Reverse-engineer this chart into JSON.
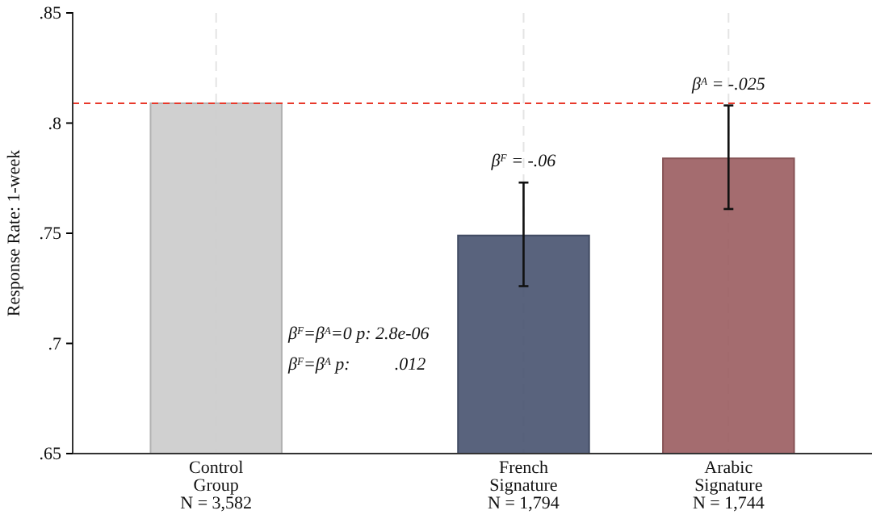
{
  "chart_data": {
    "type": "bar",
    "ylabel": "Response Rate: 1-week",
    "categories": [
      "Control\nGroup\nN = 3,582",
      "French\nSignature\nN = 1,794",
      "Arabic\nSignature\nN = 1,744"
    ],
    "values": [
      0.809,
      0.749,
      0.784
    ],
    "colors": [
      "#cccccc",
      "#4b5672",
      "#9c6063"
    ],
    "errors": [
      null,
      [
        0.726,
        0.773
      ],
      [
        0.761,
        0.808
      ]
    ],
    "ylim": [
      0.65,
      0.85
    ],
    "yticks": [
      {
        "value": 0.65,
        "label": ".65"
      },
      {
        "value": 0.7,
        "label": ".7"
      },
      {
        "value": 0.75,
        "label": ".75"
      },
      {
        "value": 0.8,
        "label": ".8"
      },
      {
        "value": 0.85,
        "label": ".85"
      }
    ],
    "grid": "x",
    "ref_lines": [
      {
        "axis": "y",
        "value": 0.809,
        "color": "#e8392b",
        "line_style": "dashed"
      }
    ],
    "annotations": [
      {
        "text": "β$^{F}$ = -.06",
        "x": "French\nSignature\nN = 1,794",
        "y": 0.773
      },
      {
        "text": "β$^{A}$ = -.025",
        "x": "Arabic\nSignature\nN = 1,744",
        "y": 0.808
      },
      "β$^{F}$=β$^{A}$=0 p: 2.8e-06",
      "β$^{F}$=β$^{A}$ p:          .012"
    ]
  }
}
